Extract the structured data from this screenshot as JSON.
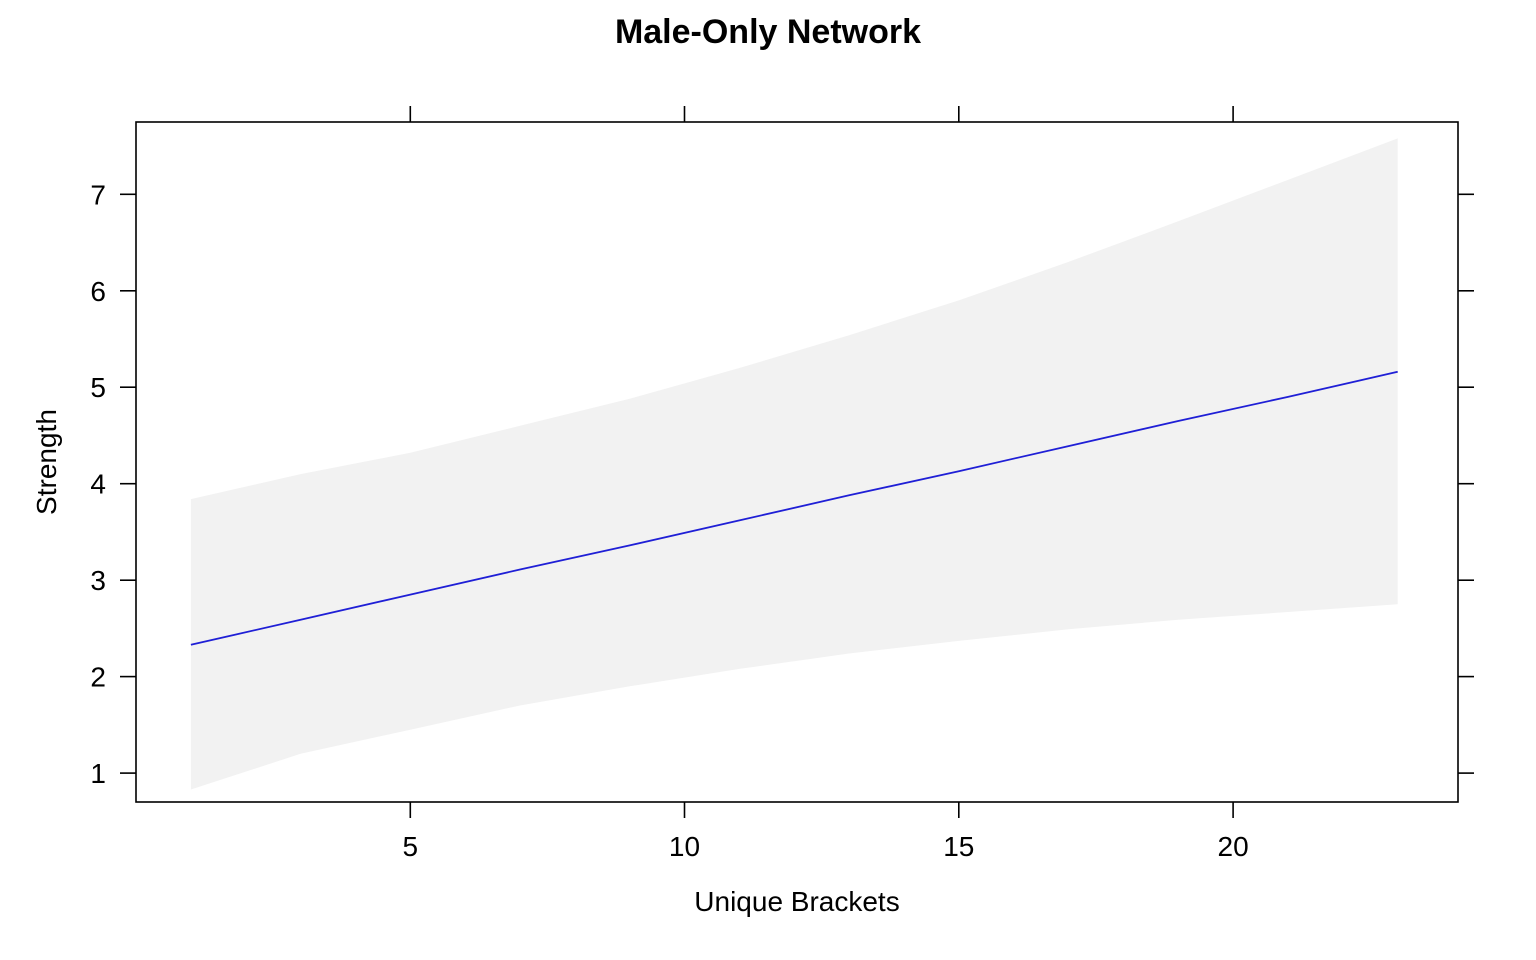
{
  "chart_data": {
    "type": "line",
    "title": "Male-Only Network",
    "xlabel": "Unique Brackets",
    "ylabel": "Strength",
    "xlim": [
      0.0,
      24.1
    ],
    "ylim": [
      0.7,
      7.75
    ],
    "x_ticks": [
      5,
      10,
      15,
      20
    ],
    "y_ticks": [
      1,
      2,
      3,
      4,
      5,
      6,
      7
    ],
    "x_tick_labels": [
      "5",
      "10",
      "15",
      "20"
    ],
    "y_tick_labels": [
      "1",
      "2",
      "3",
      "4",
      "5",
      "6",
      "7"
    ],
    "grid": false,
    "legend": "none",
    "colors": {
      "line": "#1f1fd6",
      "band": "#f2f2f2"
    },
    "series": [
      {
        "x": [
          1,
          3,
          5,
          7,
          9,
          11,
          13,
          15,
          17,
          19,
          21,
          23
        ],
        "y": [
          2.33,
          2.59,
          2.85,
          3.11,
          3.36,
          3.62,
          3.88,
          4.13,
          4.39,
          4.65,
          4.9,
          5.16
        ],
        "lower": [
          0.83,
          1.2,
          1.45,
          1.7,
          1.9,
          2.08,
          2.24,
          2.37,
          2.49,
          2.59,
          2.67,
          2.75
        ],
        "upper": [
          3.84,
          4.1,
          4.32,
          4.6,
          4.88,
          5.2,
          5.54,
          5.9,
          6.3,
          6.72,
          7.15,
          7.58
        ]
      }
    ]
  }
}
